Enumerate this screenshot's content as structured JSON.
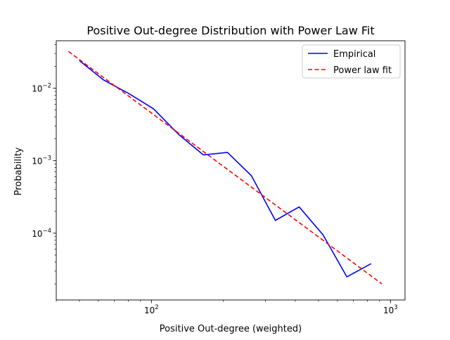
{
  "chart_data": {
    "type": "line",
    "title": "Positive Out-degree Distribution with Power Law Fit",
    "xlabel": "Positive Out-degree (weighted)",
    "ylabel": "Probability",
    "xscale": "log",
    "yscale": "log",
    "xlim": [
      40,
      1150
    ],
    "ylim": [
      1.2e-05,
      0.045
    ],
    "x_major_ticks": [
      {
        "value": 100,
        "base": "10",
        "exp": "2"
      },
      {
        "value": 1000,
        "base": "10",
        "exp": "3"
      }
    ],
    "y_major_ticks": [
      {
        "value": 0.01,
        "base": "10",
        "exp": "−2"
      },
      {
        "value": 0.001,
        "base": "10",
        "exp": "−3"
      },
      {
        "value": 0.0001,
        "base": "10",
        "exp": "−4"
      }
    ],
    "x_minor_ticks": [
      40,
      50,
      60,
      70,
      80,
      90,
      200,
      300,
      400,
      500,
      600,
      700,
      800,
      900
    ],
    "y_minor_ticks": [
      2e-05,
      3e-05,
      4e-05,
      5e-05,
      6e-05,
      7e-05,
      8e-05,
      9e-05,
      0.0002,
      0.0003,
      0.0004,
      0.0005,
      0.0006,
      0.0007,
      0.0008,
      0.0009,
      0.002,
      0.003,
      0.004,
      0.005,
      0.006,
      0.007,
      0.008,
      0.009,
      0.02,
      0.03,
      0.04
    ],
    "grid": false,
    "legend_position": "top-right",
    "series": [
      {
        "name": "Empirical",
        "color": "#0000ff",
        "style": "solid",
        "x": [
          50,
          63,
          80,
          102,
          130,
          165,
          208,
          262,
          330,
          415,
          522,
          657,
          830
        ],
        "y": [
          0.024,
          0.013,
          0.0085,
          0.0052,
          0.0023,
          0.0012,
          0.0013,
          0.00062,
          0.00015,
          0.00023,
          9.5e-05,
          2.5e-05,
          3.8e-05
        ]
      },
      {
        "name": "Power law fit",
        "color": "#ff0000",
        "style": "dashed",
        "x": [
          45,
          920
        ],
        "y": [
          0.032,
          2e-05
        ]
      }
    ]
  }
}
